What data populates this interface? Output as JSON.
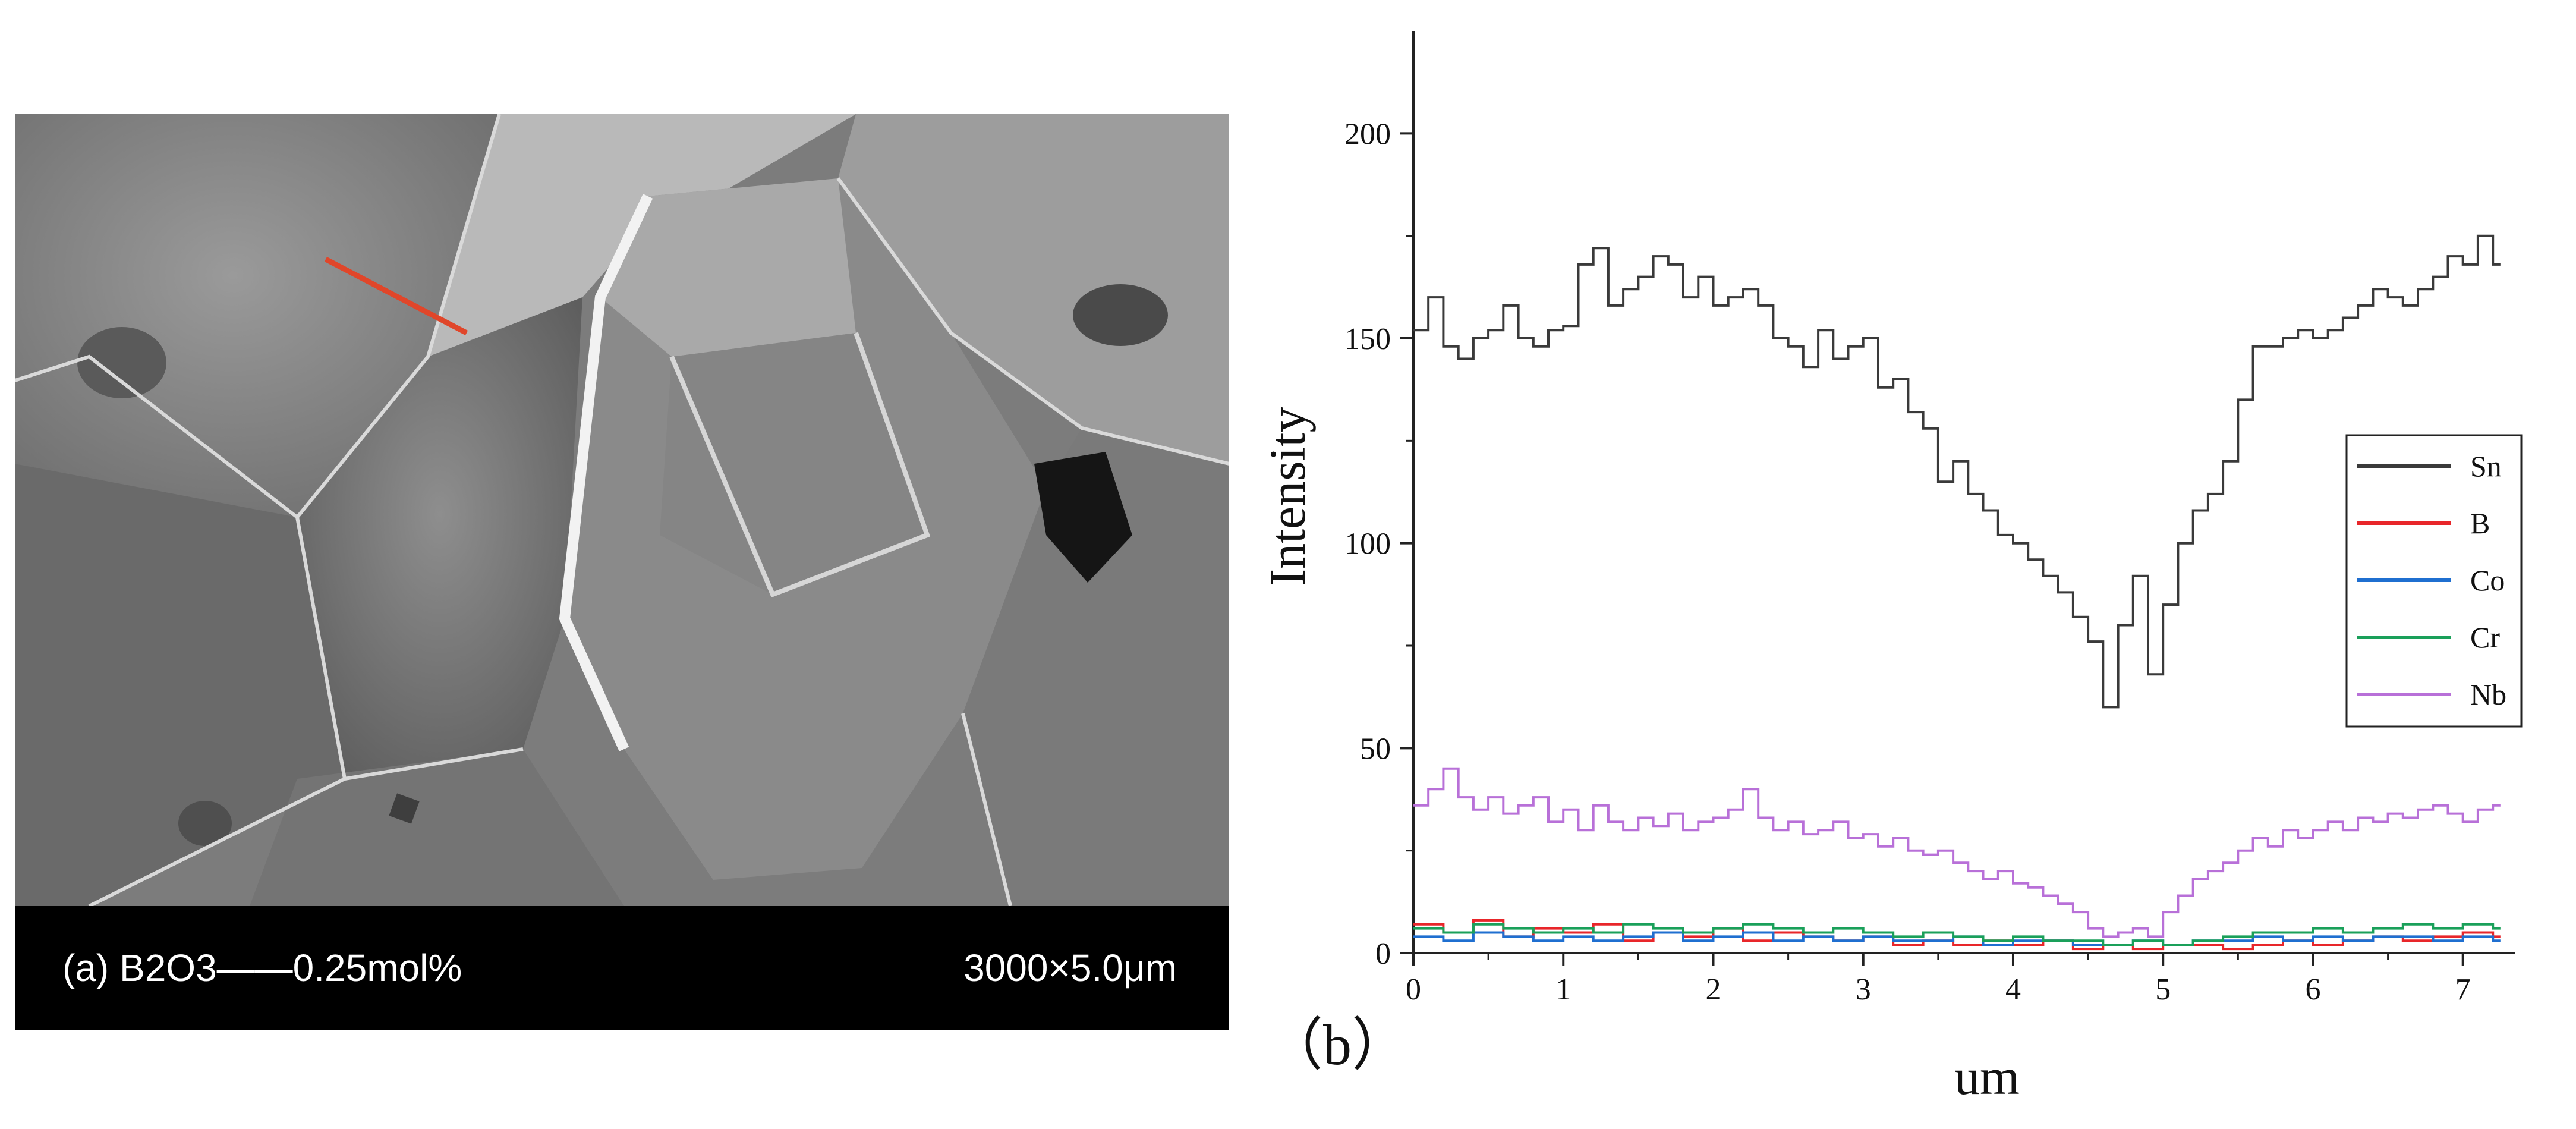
{
  "sem_panel": {
    "caption_left": "(a) B2O3——0.25mol%",
    "caption_right": "3000×5.0μm",
    "scan_line_color": "#e0462a"
  },
  "chart_data": {
    "type": "line",
    "panel_label": "（b）",
    "xlabel": "um",
    "ylabel": "Intensity",
    "xlim": [
      0,
      7.35
    ],
    "ylim": [
      0,
      225
    ],
    "x_ticks": [
      0,
      1,
      2,
      3,
      4,
      5,
      6,
      7
    ],
    "y_ticks": [
      0,
      50,
      100,
      150,
      200
    ],
    "legend_position": "right-middle",
    "series": [
      {
        "name": "Sn",
        "color": "#3a3a3a",
        "x": [
          0.0,
          0.1,
          0.2,
          0.3,
          0.4,
          0.5,
          0.6,
          0.7,
          0.8,
          0.9,
          1.0,
          1.1,
          1.2,
          1.3,
          1.4,
          1.5,
          1.6,
          1.7,
          1.8,
          1.9,
          2.0,
          2.1,
          2.2,
          2.3,
          2.4,
          2.5,
          2.6,
          2.7,
          2.8,
          2.9,
          3.0,
          3.1,
          3.2,
          3.3,
          3.4,
          3.5,
          3.6,
          3.7,
          3.8,
          3.9,
          4.0,
          4.1,
          4.2,
          4.3,
          4.4,
          4.5,
          4.6,
          4.7,
          4.8,
          4.9,
          5.0,
          5.1,
          5.2,
          5.3,
          5.4,
          5.5,
          5.6,
          5.7,
          5.8,
          5.9,
          6.0,
          6.1,
          6.2,
          6.3,
          6.4,
          6.5,
          6.6,
          6.7,
          6.8,
          6.9,
          7.0,
          7.1,
          7.2
        ],
        "values": [
          152,
          160,
          148,
          145,
          150,
          152,
          158,
          150,
          148,
          152,
          153,
          168,
          172,
          158,
          162,
          165,
          170,
          168,
          160,
          165,
          158,
          160,
          162,
          158,
          150,
          148,
          143,
          152,
          145,
          148,
          150,
          138,
          140,
          132,
          128,
          115,
          120,
          112,
          108,
          102,
          100,
          96,
          92,
          88,
          82,
          76,
          60,
          80,
          92,
          68,
          85,
          100,
          108,
          112,
          120,
          135,
          148,
          148,
          150,
          152,
          150,
          152,
          155,
          158,
          162,
          160,
          158,
          162,
          165,
          170,
          168,
          175,
          168
        ]
      },
      {
        "name": "B",
        "color": "#e8262a",
        "x": [
          0.0,
          0.2,
          0.4,
          0.6,
          0.8,
          1.0,
          1.2,
          1.4,
          1.6,
          1.8,
          2.0,
          2.2,
          2.4,
          2.6,
          2.8,
          3.0,
          3.2,
          3.4,
          3.6,
          3.8,
          4.0,
          4.2,
          4.4,
          4.6,
          4.8,
          5.0,
          5.2,
          5.4,
          5.6,
          5.8,
          6.0,
          6.2,
          6.4,
          6.6,
          6.8,
          7.0,
          7.2
        ],
        "values": [
          7,
          5,
          8,
          4,
          6,
          5,
          7,
          3,
          5,
          4,
          6,
          3,
          5,
          4,
          3,
          4,
          2,
          3,
          2,
          3,
          2,
          3,
          1,
          2,
          1,
          2,
          2,
          1,
          2,
          3,
          2,
          3,
          4,
          3,
          4,
          5,
          4
        ]
      },
      {
        "name": "Co",
        "color": "#1f6fd0",
        "x": [
          0.0,
          0.2,
          0.4,
          0.6,
          0.8,
          1.0,
          1.2,
          1.4,
          1.6,
          1.8,
          2.0,
          2.2,
          2.4,
          2.6,
          2.8,
          3.0,
          3.2,
          3.4,
          3.6,
          3.8,
          4.0,
          4.2,
          4.4,
          4.6,
          4.8,
          5.0,
          5.2,
          5.4,
          5.6,
          5.8,
          6.0,
          6.2,
          6.4,
          6.6,
          6.8,
          7.0,
          7.2
        ],
        "values": [
          4,
          3,
          5,
          4,
          3,
          4,
          3,
          4,
          5,
          3,
          4,
          5,
          3,
          4,
          3,
          4,
          3,
          3,
          4,
          2,
          3,
          3,
          2,
          2,
          3,
          2,
          3,
          3,
          4,
          3,
          4,
          3,
          4,
          4,
          3,
          4,
          3
        ]
      },
      {
        "name": "Cr",
        "color": "#1aa05a",
        "x": [
          0.0,
          0.2,
          0.4,
          0.6,
          0.8,
          1.0,
          1.2,
          1.4,
          1.6,
          1.8,
          2.0,
          2.2,
          2.4,
          2.6,
          2.8,
          3.0,
          3.2,
          3.4,
          3.6,
          3.8,
          4.0,
          4.2,
          4.4,
          4.6,
          4.8,
          5.0,
          5.2,
          5.4,
          5.6,
          5.8,
          6.0,
          6.2,
          6.4,
          6.6,
          6.8,
          7.0,
          7.2
        ],
        "values": [
          6,
          5,
          7,
          6,
          5,
          6,
          5,
          7,
          6,
          5,
          6,
          7,
          6,
          5,
          6,
          5,
          4,
          5,
          4,
          3,
          4,
          3,
          3,
          2,
          3,
          2,
          3,
          4,
          5,
          5,
          6,
          5,
          6,
          7,
          6,
          7,
          6
        ]
      },
      {
        "name": "Nb",
        "color": "#b870d8",
        "x": [
          0.0,
          0.1,
          0.2,
          0.3,
          0.4,
          0.5,
          0.6,
          0.7,
          0.8,
          0.9,
          1.0,
          1.1,
          1.2,
          1.3,
          1.4,
          1.5,
          1.6,
          1.7,
          1.8,
          1.9,
          2.0,
          2.1,
          2.2,
          2.3,
          2.4,
          2.5,
          2.6,
          2.7,
          2.8,
          2.9,
          3.0,
          3.1,
          3.2,
          3.3,
          3.4,
          3.5,
          3.6,
          3.7,
          3.8,
          3.9,
          4.0,
          4.1,
          4.2,
          4.3,
          4.4,
          4.5,
          4.6,
          4.7,
          4.8,
          4.9,
          5.0,
          5.1,
          5.2,
          5.3,
          5.4,
          5.5,
          5.6,
          5.7,
          5.8,
          5.9,
          6.0,
          6.1,
          6.2,
          6.3,
          6.4,
          6.5,
          6.6,
          6.7,
          6.8,
          6.9,
          7.0,
          7.1,
          7.2
        ],
        "values": [
          36,
          40,
          45,
          38,
          35,
          38,
          34,
          36,
          38,
          32,
          35,
          30,
          36,
          32,
          30,
          33,
          31,
          34,
          30,
          32,
          33,
          35,
          40,
          33,
          30,
          32,
          29,
          30,
          32,
          28,
          29,
          26,
          28,
          25,
          24,
          25,
          22,
          20,
          18,
          20,
          17,
          16,
          14,
          12,
          10,
          6,
          4,
          5,
          6,
          4,
          10,
          14,
          18,
          20,
          22,
          25,
          28,
          26,
          30,
          28,
          30,
          32,
          30,
          33,
          32,
          34,
          33,
          35,
          36,
          34,
          32,
          35,
          36
        ]
      }
    ]
  }
}
